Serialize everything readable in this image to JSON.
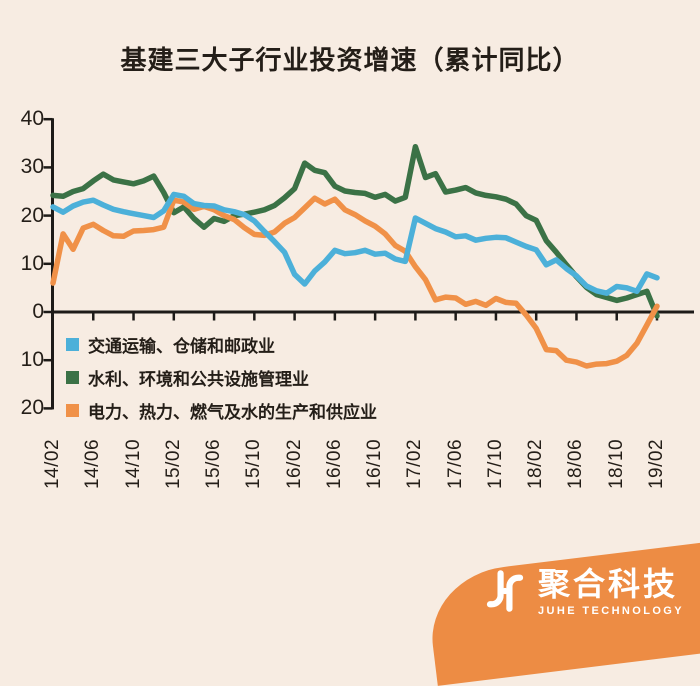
{
  "title": "基建三大子行业投资增速（累计同比）",
  "colors": {
    "background": "#f7ece2",
    "text": "#241e18",
    "axis": "#1d1b18",
    "blue": "#4cb0d9",
    "green": "#3b7246",
    "orange": "#f09148",
    "logo_background": "#ed8c44",
    "logo_text": "#ffffff"
  },
  "chart_data": {
    "type": "line",
    "title": "基建三大子行业投资增速（累计同比）",
    "xlabel": "",
    "ylabel": "",
    "ylim": [
      -20,
      40
    ],
    "grid": false,
    "legend_position": "inside-bottom-left",
    "y_ticks": [
      40,
      30,
      20,
      10,
      0,
      -10,
      -20
    ],
    "y_tick_labels": [
      "40",
      "30",
      "20",
      "10",
      "0",
      "10",
      "20"
    ],
    "x_tick_labels": [
      "14/02",
      "14/06",
      "14/10",
      "15/02",
      "15/06",
      "15/10",
      "16/02",
      "16/06",
      "16/10",
      "17/02",
      "17/06",
      "17/10",
      "18/02",
      "18/06",
      "18/10",
      "19/02"
    ],
    "label_every": 4,
    "months": [
      "14/02",
      "14/03",
      "14/04",
      "14/05",
      "14/06",
      "14/07",
      "14/08",
      "14/09",
      "14/10",
      "14/11",
      "14/12",
      "15/01",
      "15/02",
      "15/03",
      "15/04",
      "15/05",
      "15/06",
      "15/07",
      "15/08",
      "15/09",
      "15/10",
      "15/11",
      "15/12",
      "16/01",
      "16/02",
      "16/03",
      "16/04",
      "16/05",
      "16/06",
      "16/07",
      "16/08",
      "16/09",
      "16/10",
      "16/11",
      "16/12",
      "17/01",
      "17/02",
      "17/03",
      "17/04",
      "17/05",
      "17/06",
      "17/07",
      "17/08",
      "17/09",
      "17/10",
      "17/11",
      "17/12",
      "18/01",
      "18/02",
      "18/03",
      "18/04",
      "18/05",
      "18/06",
      "18/07",
      "18/08",
      "18/09",
      "18/10",
      "18/11",
      "18/12",
      "19/01",
      "19/02"
    ],
    "series": [
      {
        "name": "交通运输、仓储和邮政业",
        "color": "#4cb0d9",
        "values": [
          21.8,
          20.7,
          22.0,
          22.8,
          23.2,
          22.2,
          21.3,
          20.8,
          20.4,
          20.0,
          19.6,
          21.0,
          24.4,
          24.0,
          22.5,
          22.1,
          22.0,
          21.2,
          20.8,
          20.2,
          18.9,
          16.7,
          14.6,
          12.4,
          7.8,
          5.8,
          8.5,
          10.4,
          12.8,
          12.1,
          12.3,
          12.8,
          12.0,
          12.2,
          11.0,
          10.5,
          19.5,
          18.4,
          17.3,
          16.6,
          15.6,
          15.8,
          14.9,
          15.3,
          15.5,
          15.4,
          14.5,
          13.6,
          12.9,
          9.8,
          10.8,
          9.0,
          7.5,
          5.4,
          4.4,
          3.9,
          5.3,
          5.0,
          4.3,
          7.9,
          7.1
        ]
      },
      {
        "name": "水利、环境和公共设施管理业",
        "color": "#3b7246",
        "values": [
          24.2,
          24.0,
          25.0,
          25.6,
          27.2,
          28.6,
          27.4,
          27.0,
          26.6,
          27.2,
          28.2,
          24.8,
          20.6,
          21.8,
          19.4,
          17.6,
          19.4,
          18.8,
          20.0,
          20.3,
          20.7,
          21.2,
          22.1,
          23.7,
          25.6,
          30.9,
          29.4,
          28.9,
          26.1,
          25.1,
          24.8,
          24.6,
          23.8,
          24.4,
          23.0,
          23.8,
          34.3,
          27.9,
          28.7,
          24.9,
          25.3,
          25.8,
          24.7,
          24.2,
          23.9,
          23.4,
          22.4,
          20.0,
          19.0,
          14.8,
          12.4,
          9.8,
          7.3,
          5.1,
          3.6,
          3.0,
          2.4,
          2.9,
          3.6,
          4.3,
          -0.8
        ]
      },
      {
        "name": "电力、热力、燃气及水的生产和供应业",
        "color": "#f09148",
        "values": [
          6.0,
          16.2,
          13.0,
          17.4,
          18.2,
          16.9,
          15.8,
          15.7,
          16.8,
          16.9,
          17.1,
          17.6,
          23.2,
          22.8,
          21.3,
          21.9,
          21.2,
          20.0,
          19.2,
          17.5,
          16.1,
          15.9,
          16.6,
          18.4,
          19.6,
          21.6,
          23.6,
          22.4,
          23.4,
          21.2,
          20.2,
          18.9,
          17.8,
          16.2,
          13.8,
          12.6,
          9.4,
          6.7,
          2.5,
          3.1,
          2.9,
          1.6,
          2.2,
          1.4,
          2.8,
          2.0,
          1.8,
          -0.6,
          -3.4,
          -7.8,
          -8.0,
          -10.0,
          -10.4,
          -11.2,
          -10.8,
          -10.7,
          -10.2,
          -9.0,
          -6.5,
          -2.7,
          1.2
        ]
      }
    ]
  },
  "logo": {
    "mark": "J·H",
    "name_cn": "聚合科技",
    "name_en": "JUHE TECHNOLOGY"
  }
}
